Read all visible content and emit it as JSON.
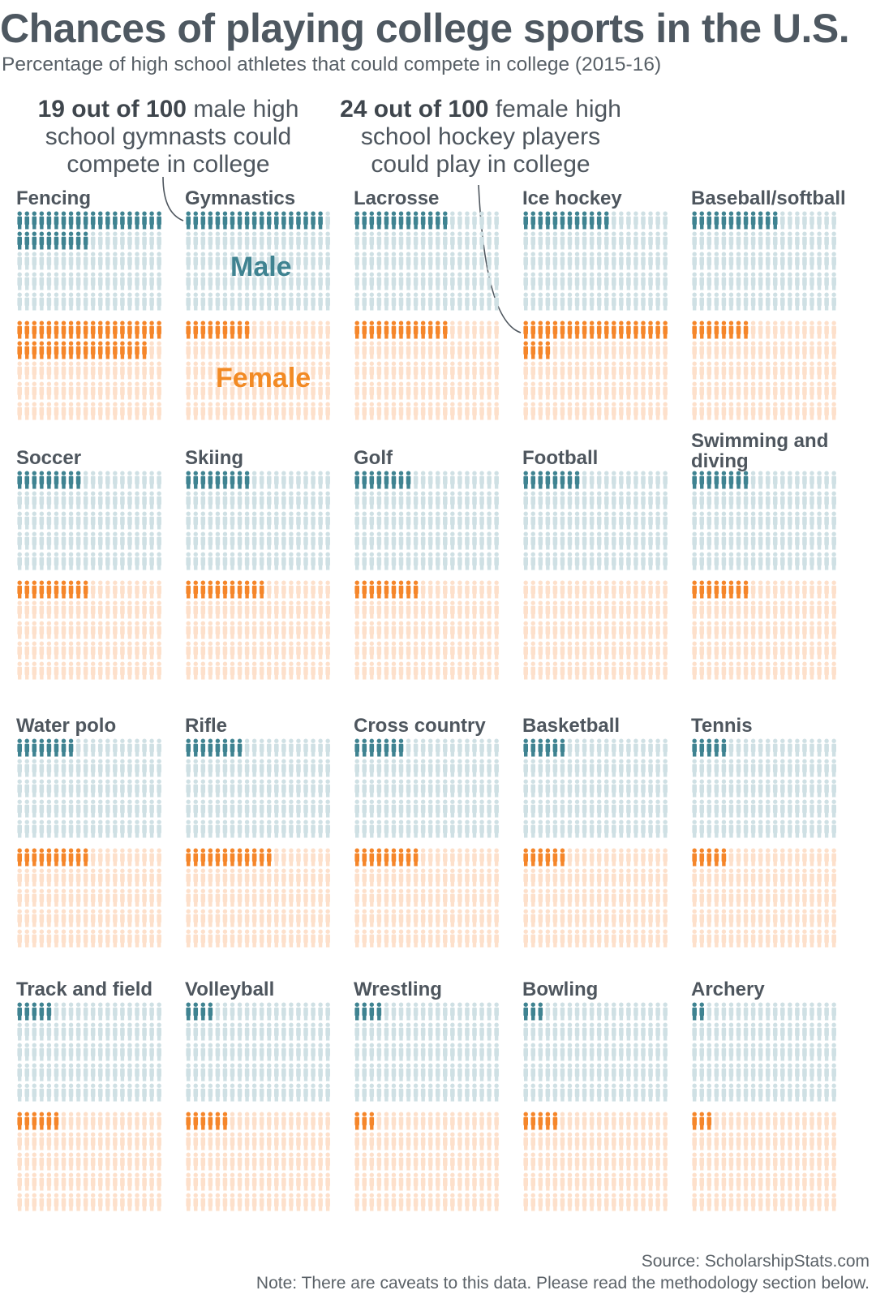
{
  "title": "Chances of playing college sports in the U.S.",
  "subtitle": "Percentage of high school athletes that could compete in college (2015-16)",
  "callouts": {
    "male": {
      "bold": "19 out of 100",
      "text": " male high school gymnasts could compete in college"
    },
    "female": {
      "bold": "24 out of 100",
      "text": " female high school hockey players could play in college"
    }
  },
  "legend": {
    "male": "Male",
    "female": "Female"
  },
  "colors": {
    "male": "#3f8391",
    "male_light": "#cfe0e4",
    "female": "#f5862a",
    "female_light": "#fde0cb"
  },
  "chart_data": {
    "type": "pictograph",
    "title": "Chances of playing college sports in the U.S.",
    "unit": "athletes out of 100 high school athletes",
    "total_per_group": 100,
    "series": [
      "Male",
      "Female"
    ],
    "sports": [
      {
        "name": "Fencing",
        "male": 30,
        "female": 38
      },
      {
        "name": "Gymnastics",
        "male": 19,
        "female": 9
      },
      {
        "name": "Lacrosse",
        "male": 13,
        "female": 13
      },
      {
        "name": "Ice hockey",
        "male": 12,
        "female": 24
      },
      {
        "name": "Baseball/softball",
        "male": 12,
        "female": 8
      },
      {
        "name": "Soccer",
        "male": 9,
        "female": 10
      },
      {
        "name": "Skiing",
        "male": 9,
        "female": 11
      },
      {
        "name": "Golf",
        "male": 8,
        "female": 9
      },
      {
        "name": "Football",
        "male": 8,
        "female": 0
      },
      {
        "name": "Swimming and diving",
        "male": 8,
        "female": 8
      },
      {
        "name": "Water polo",
        "male": 8,
        "female": 10
      },
      {
        "name": "Rifle",
        "male": 8,
        "female": 12
      },
      {
        "name": "Cross country",
        "male": 7,
        "female": 9
      },
      {
        "name": "Basketball",
        "male": 6,
        "female": 6
      },
      {
        "name": "Tennis",
        "male": 5,
        "female": 5
      },
      {
        "name": "Track and field",
        "male": 5,
        "female": 6
      },
      {
        "name": "Volleyball",
        "male": 4,
        "female": 6
      },
      {
        "name": "Wrestling",
        "male": 4,
        "female": 3
      },
      {
        "name": "Bowling",
        "male": 3,
        "female": 5
      },
      {
        "name": "Archery",
        "male": 2,
        "female": 3
      }
    ]
  },
  "footer": {
    "source": "Source: ScholarshipStats.com",
    "note": "Note: There are caveats to this data. Please read the methodology section below."
  }
}
